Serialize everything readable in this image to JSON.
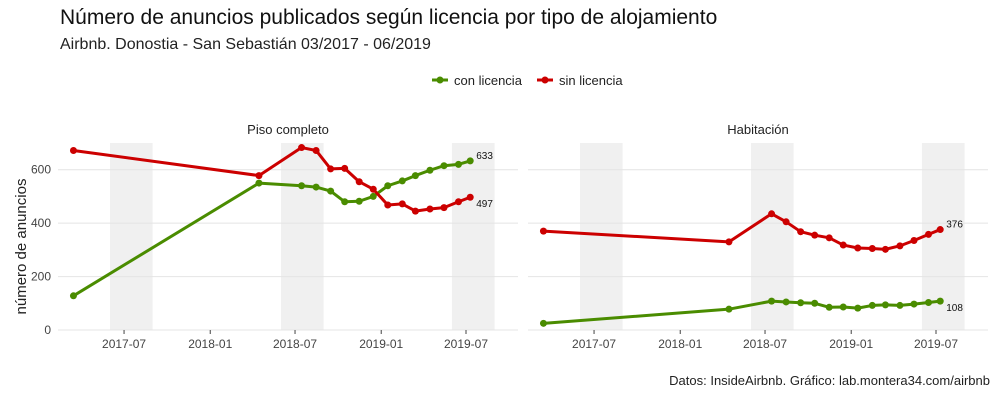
{
  "title": "Número de anuncios publicados según licencia por tipo de alojamiento",
  "subtitle": "Airbnb. Donostia - San Sebastián 03/2017 - 06/2019",
  "caption": "Datos: InsideAirbnb. Gráfico: lab.montera34.com/airbnb",
  "colors": {
    "con": "#4a8c00",
    "sin": "#cc0000",
    "shade": "#f0f0f0",
    "grid": "#e4e4e4"
  },
  "chart_data": {
    "type": "line",
    "ylabel": "número de anuncios",
    "ylim": [
      0,
      700
    ],
    "yticks": [
      0,
      200,
      400,
      600
    ],
    "xlim": [
      "2017-02-10",
      "2019-10-20"
    ],
    "xticks": [
      "2017-07",
      "2018-01",
      "2018-07",
      "2019-01",
      "2019-07"
    ],
    "shaded_periods": [
      [
        "2017-06-01",
        "2017-08-31"
      ],
      [
        "2018-06-01",
        "2018-08-31"
      ],
      [
        "2019-06-01",
        "2019-08-31"
      ]
    ],
    "legend": {
      "position": "top",
      "entries": [
        "con licencia",
        "sin licencia"
      ]
    },
    "x": [
      "2017-03-15",
      "2018-04-15",
      "2018-07-15",
      "2018-08-15",
      "2018-09-15",
      "2018-10-15",
      "2018-11-15",
      "2018-12-15",
      "2019-01-15",
      "2019-02-15",
      "2019-03-15",
      "2019-04-15",
      "2019-05-15",
      "2019-06-15",
      "2019-07-10"
    ],
    "panels": [
      {
        "name": "Piso completo",
        "series": [
          {
            "name": "con licencia",
            "values": [
              128,
              550,
              540,
              535,
              520,
              480,
              482,
              500,
              540,
              558,
              578,
              598,
              615,
              620,
              633
            ],
            "end_label": "633"
          },
          {
            "name": "sin licencia",
            "values": [
              672,
              578,
              683,
              672,
              603,
              605,
              555,
              527,
              468,
              472,
              445,
              453,
              458,
              480,
              497
            ],
            "end_label": "497"
          }
        ]
      },
      {
        "name": "Habitación",
        "series": [
          {
            "name": "con licencia",
            "values": [
              25,
              78,
              108,
              105,
              102,
              100,
              85,
              86,
              82,
              92,
              94,
              92,
              97,
              103,
              108
            ],
            "end_label": "108"
          },
          {
            "name": "sin licencia",
            "values": [
              370,
              330,
              435,
              405,
              368,
              355,
              345,
              318,
              307,
              305,
              302,
              315,
              335,
              358,
              376
            ],
            "end_label": "376"
          }
        ]
      }
    ]
  }
}
